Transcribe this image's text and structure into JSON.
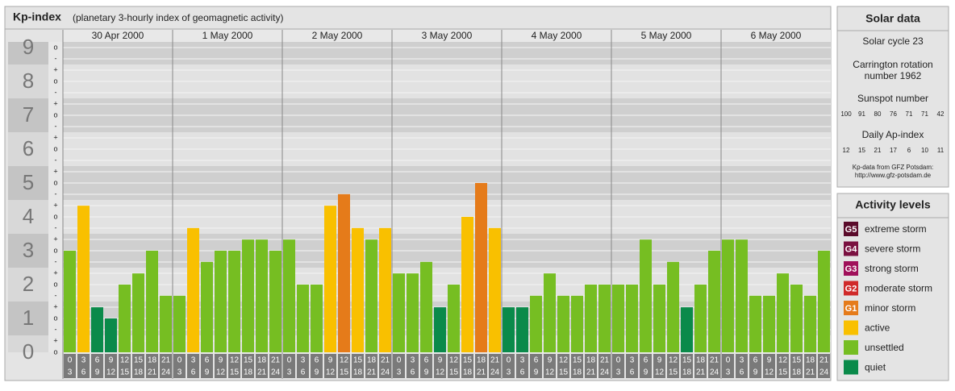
{
  "chart_data": {
    "type": "bar",
    "title": "Kp-index",
    "subtitle": "(planetary 3-hourly index of geomagnetic activity)",
    "days": [
      "30 Apr 2000",
      "1 May 2000",
      "2 May 2000",
      "3 May 2000",
      "4 May 2000",
      "5 May 2000",
      "6 May 2000"
    ],
    "slots": [
      [
        "0",
        "3"
      ],
      [
        "3",
        "6"
      ],
      [
        "6",
        "9"
      ],
      [
        "9",
        "12"
      ],
      [
        "12",
        "15"
      ],
      [
        "15",
        "18"
      ],
      [
        "18",
        "21"
      ],
      [
        "21",
        "24"
      ]
    ],
    "values": [
      3,
      4.33,
      1.33,
      1,
      2,
      2.33,
      3,
      1.67,
      1.67,
      3.67,
      2.67,
      3,
      3,
      3.33,
      3.33,
      3,
      3.33,
      2,
      2,
      4.33,
      4.67,
      3.67,
      3.33,
      3.67,
      2.33,
      2.33,
      2.67,
      1.33,
      2,
      4,
      5,
      3.67,
      1.33,
      1.33,
      1.67,
      2.33,
      1.67,
      1.67,
      2,
      2,
      2,
      2,
      3.33,
      2,
      2.67,
      1.33,
      2,
      3,
      3.33,
      3.33,
      1.67,
      1.67,
      2.33,
      2,
      1.67,
      3
    ],
    "colors": [
      "#76be22",
      "#f9c000",
      "#0a8a4a",
      "#0a8a4a",
      "#76be22",
      "#76be22",
      "#76be22",
      "#76be22",
      "#76be22",
      "#f9c000",
      "#76be22",
      "#76be22",
      "#76be22",
      "#76be22",
      "#76be22",
      "#76be22",
      "#76be22",
      "#76be22",
      "#76be22",
      "#f9c000",
      "#e57b1a",
      "#f9c000",
      "#76be22",
      "#f9c000",
      "#76be22",
      "#76be22",
      "#76be22",
      "#0a8a4a",
      "#76be22",
      "#f9c000",
      "#e57b1a",
      "#f9c000",
      "#0a8a4a",
      "#0a8a4a",
      "#76be22",
      "#76be22",
      "#76be22",
      "#76be22",
      "#76be22",
      "#76be22",
      "#76be22",
      "#76be22",
      "#76be22",
      "#76be22",
      "#76be22",
      "#0a8a4a",
      "#76be22",
      "#76be22",
      "#76be22",
      "#76be22",
      "#76be22",
      "#76be22",
      "#76be22",
      "#76be22",
      "#76be22",
      "#76be22"
    ],
    "ylim": [
      0,
      9
    ],
    "yticks": [
      0,
      1,
      2,
      3,
      4,
      5,
      6,
      7,
      8,
      9
    ],
    "minor_ticks": [
      {
        "value": 0,
        "label": "o"
      },
      {
        "value": 0.333,
        "label": "+"
      },
      {
        "value": 0.667,
        "label": "-"
      },
      {
        "value": 1,
        "label": "o"
      },
      {
        "value": 1.333,
        "label": "+"
      },
      {
        "value": 1.667,
        "label": "-"
      },
      {
        "value": 2,
        "label": "o"
      },
      {
        "value": 2.333,
        "label": "+"
      },
      {
        "value": 2.667,
        "label": "-"
      },
      {
        "value": 3,
        "label": "o"
      },
      {
        "value": 3.333,
        "label": "+"
      },
      {
        "value": 3.667,
        "label": "-"
      },
      {
        "value": 4,
        "label": "o"
      },
      {
        "value": 4.333,
        "label": "+"
      },
      {
        "value": 4.667,
        "label": "-"
      },
      {
        "value": 5,
        "label": "o"
      },
      {
        "value": 5.333,
        "label": "+"
      },
      {
        "value": 5.667,
        "label": "-"
      },
      {
        "value": 6,
        "label": "o"
      },
      {
        "value": 6.333,
        "label": "+"
      },
      {
        "value": 6.667,
        "label": "-"
      },
      {
        "value": 7,
        "label": "o"
      },
      {
        "value": 7.333,
        "label": "+"
      },
      {
        "value": 7.667,
        "label": "-"
      },
      {
        "value": 8,
        "label": "o"
      },
      {
        "value": 8.333,
        "label": "+"
      },
      {
        "value": 8.667,
        "label": "-"
      },
      {
        "value": 9,
        "label": "o"
      }
    ],
    "grid": true
  },
  "solar_data": {
    "title": "Solar data",
    "cycle": "Solar cycle 23",
    "carrington": [
      "Carrington rotation",
      "number 1962"
    ],
    "sunspot_title": "Sunspot number",
    "sunspot": [
      "100",
      "91",
      "80",
      "76",
      "71",
      "71",
      "42"
    ],
    "ap_title": "Daily Ap-index",
    "ap": [
      "12",
      "15",
      "21",
      "17",
      "6",
      "10",
      "11"
    ],
    "source": [
      "Kp-data from GFZ Potsdam:",
      "http://www.gfz-potsdam.de"
    ]
  },
  "activity_levels": {
    "title": "Activity levels",
    "items": [
      {
        "code": "G5",
        "name": "extreme storm",
        "color": "#5a0a2a"
      },
      {
        "code": "G4",
        "name": "severe storm",
        "color": "#7a1040"
      },
      {
        "code": "G3",
        "name": "strong storm",
        "color": "#a0105a"
      },
      {
        "code": "G2",
        "name": "moderate storm",
        "color": "#d02a2a"
      },
      {
        "code": "G1",
        "name": "minor storm",
        "color": "#e57b1a"
      },
      {
        "code": null,
        "name": "active",
        "color": "#f9c000"
      },
      {
        "code": null,
        "name": "unsettled",
        "color": "#76be22"
      },
      {
        "code": null,
        "name": "quiet",
        "color": "#0a8a4a"
      }
    ]
  }
}
